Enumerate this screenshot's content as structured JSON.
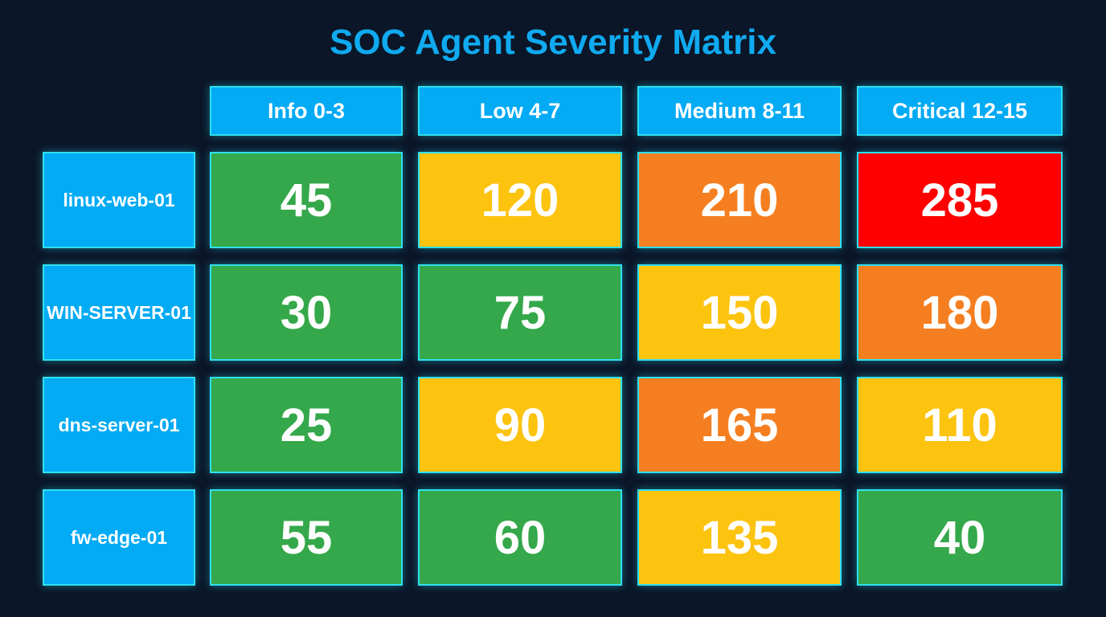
{
  "chart_data": {
    "type": "heatmap",
    "title": "SOC Agent Severity Matrix",
    "columns": [
      "Info 0-3",
      "Low 4-7",
      "Medium 8-11",
      "Critical 12-15"
    ],
    "rows": [
      "linux-web-01",
      "WIN-SERVER-01",
      "dns-server-01",
      "fw-edge-01"
    ],
    "values": [
      [
        45,
        120,
        210,
        285
      ],
      [
        30,
        75,
        150,
        180
      ],
      [
        25,
        90,
        165,
        110
      ],
      [
        55,
        60,
        135,
        40
      ]
    ],
    "cell_colors": [
      [
        "#34a84a",
        "#fcc30f",
        "#f57f20",
        "#fe0000"
      ],
      [
        "#34a84a",
        "#34a84a",
        "#fcc30f",
        "#f57f20"
      ],
      [
        "#34a84a",
        "#fcc30f",
        "#f57f20",
        "#fcc30f"
      ],
      [
        "#34a84a",
        "#34a84a",
        "#fcc30f",
        "#34a84a"
      ]
    ],
    "header_color": "#03aaf4",
    "title_color": "#10aaf0"
  }
}
